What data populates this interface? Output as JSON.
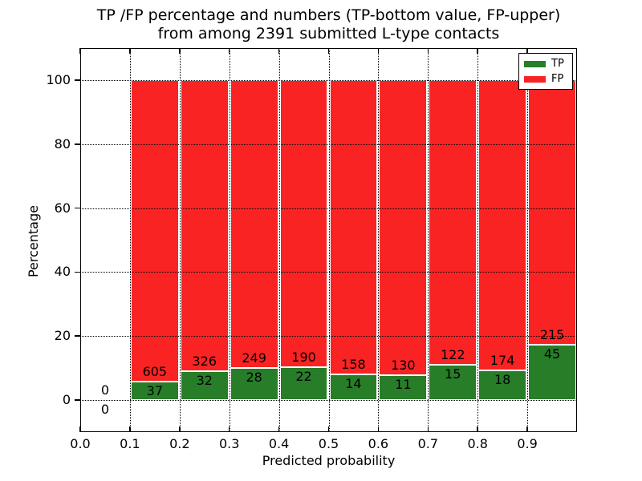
{
  "chart_data": {
    "type": "bar",
    "stacked": true,
    "normalized_to_percent": true,
    "title_line1": "TP /FP percentage and numbers (TP-bottom value, FP-upper)",
    "title_line2": "from among 2391 submitted L-type contacts",
    "total_submitted_contacts": 2391,
    "xlabel": "Predicted probability",
    "ylabel": "Percentage",
    "xlim": [
      0.0,
      1.0
    ],
    "ylim": [
      -10,
      110
    ],
    "x_tick_labels": [
      "0.0",
      "0.1",
      "0.2",
      "0.3",
      "0.4",
      "0.5",
      "0.6",
      "0.7",
      "0.8",
      "0.9"
    ],
    "y_tick_values": [
      0,
      20,
      40,
      60,
      80,
      100
    ],
    "grid": "dotted-black-on",
    "legend_position": "upper-right",
    "series": [
      {
        "name": "TP",
        "color": "#287d28",
        "position": "bottom"
      },
      {
        "name": "FP",
        "color": "#f92323",
        "position": "top"
      }
    ],
    "bins": [
      {
        "x_start": 0.0,
        "x_end": 0.1,
        "tp": 0,
        "fp": 0
      },
      {
        "x_start": 0.1,
        "x_end": 0.2,
        "tp": 37,
        "fp": 605
      },
      {
        "x_start": 0.2,
        "x_end": 0.3,
        "tp": 32,
        "fp": 326
      },
      {
        "x_start": 0.3,
        "x_end": 0.4,
        "tp": 28,
        "fp": 249
      },
      {
        "x_start": 0.4,
        "x_end": 0.5,
        "tp": 22,
        "fp": 190
      },
      {
        "x_start": 0.5,
        "x_end": 0.6,
        "tp": 14,
        "fp": 158
      },
      {
        "x_start": 0.6,
        "x_end": 0.7,
        "tp": 11,
        "fp": 130
      },
      {
        "x_start": 0.7,
        "x_end": 0.8,
        "tp": 15,
        "fp": 122
      },
      {
        "x_start": 0.8,
        "x_end": 0.9,
        "tp": 18,
        "fp": 174
      },
      {
        "x_start": 0.9,
        "x_end": 1.0,
        "tp": 45,
        "fp": 215
      }
    ]
  }
}
